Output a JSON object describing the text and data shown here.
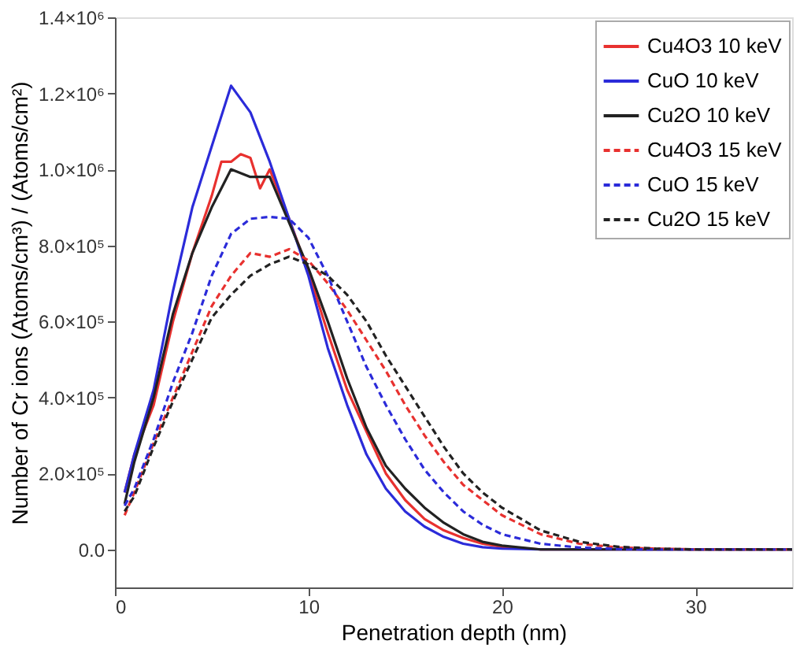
{
  "chart_data": {
    "type": "line",
    "xlabel": "Penetration depth (nm)",
    "ylabel": "Number of Cr ions (Atoms/cm³) / (Atoms/cm²)",
    "xlim": [
      0,
      35
    ],
    "xticks": [
      0,
      10,
      20,
      30
    ],
    "ylim": [
      -100000,
      1400000
    ],
    "yticks": [
      {
        "value": 0,
        "label": "0.0"
      },
      {
        "value": 200000,
        "label": "2.0×10⁵"
      },
      {
        "value": 400000,
        "label": "4.0×10⁵"
      },
      {
        "value": 600000,
        "label": "6.0×10⁵"
      },
      {
        "value": 800000,
        "label": "8.0×10⁵"
      },
      {
        "value": 1000000,
        "label": "1.0×10⁶"
      },
      {
        "value": 1200000,
        "label": "1.2×10⁶"
      },
      {
        "value": 1400000,
        "label": "1.4×10⁶"
      }
    ],
    "grid": false,
    "legend": "top right",
    "marker": "none",
    "series": [
      {
        "name": "Cu4O3 10 keV",
        "color": "#e8312f",
        "line_style": "solid",
        "x": [
          0.5,
          1,
          2,
          3,
          4,
          5,
          5.5,
          6,
          6.5,
          7,
          7.5,
          8,
          9,
          10,
          11,
          12,
          13,
          14,
          15,
          16,
          17,
          18,
          19,
          20,
          22,
          35
        ],
        "values": [
          150000,
          250000,
          380000,
          600000,
          780000,
          930000,
          1020000,
          1020000,
          1040000,
          1030000,
          950000,
          1000000,
          870000,
          730000,
          570000,
          420000,
          310000,
          200000,
          130000,
          80000,
          50000,
          30000,
          15000,
          7000,
          0,
          0
        ]
      },
      {
        "name": "CuO 10 keV",
        "color": "#2b2bd9",
        "line_style": "solid",
        "x": [
          0.5,
          1,
          2,
          3,
          4,
          5,
          6,
          7,
          8,
          9,
          10,
          11,
          12,
          13,
          14,
          15,
          16,
          17,
          18,
          19,
          20,
          22,
          35
        ],
        "values": [
          150000,
          250000,
          420000,
          680000,
          900000,
          1060000,
          1220000,
          1150000,
          1020000,
          870000,
          720000,
          530000,
          380000,
          250000,
          160000,
          100000,
          60000,
          33000,
          15000,
          6000,
          2000,
          0,
          0
        ]
      },
      {
        "name": "Cu2O 10 keV",
        "color": "#222222",
        "line_style": "solid",
        "x": [
          0.5,
          1,
          2,
          3,
          4,
          5,
          6,
          7,
          8,
          9,
          10,
          11,
          12,
          13,
          14,
          15,
          16,
          17,
          18,
          19,
          20,
          22,
          35
        ],
        "values": [
          120000,
          230000,
          400000,
          620000,
          780000,
          900000,
          1000000,
          980000,
          980000,
          860000,
          740000,
          600000,
          450000,
          320000,
          220000,
          160000,
          110000,
          70000,
          40000,
          20000,
          10000,
          0,
          0
        ]
      },
      {
        "name": "Cu4O3 15 keV",
        "color": "#e8312f",
        "line_style": "dashed",
        "x": [
          0.5,
          1,
          2,
          3,
          4,
          5,
          6,
          7,
          8,
          9,
          10,
          11,
          12,
          13,
          14,
          15,
          16,
          17,
          18,
          19,
          20,
          22,
          24,
          26,
          28,
          30,
          35
        ],
        "values": [
          90000,
          150000,
          280000,
          400000,
          520000,
          640000,
          720000,
          780000,
          770000,
          790000,
          760000,
          700000,
          630000,
          550000,
          470000,
          380000,
          300000,
          230000,
          170000,
          130000,
          90000,
          40000,
          15000,
          5000,
          2000,
          0,
          0
        ]
      },
      {
        "name": "CuO 15 keV",
        "color": "#2b2bd9",
        "line_style": "dashed",
        "x": [
          0.5,
          1,
          2,
          3,
          4,
          5,
          6,
          7,
          8,
          9,
          10,
          11,
          12,
          13,
          14,
          15,
          16,
          17,
          18,
          19,
          20,
          22,
          24,
          26,
          28,
          35
        ],
        "values": [
          115000,
          160000,
          290000,
          440000,
          570000,
          720000,
          830000,
          870000,
          875000,
          870000,
          820000,
          720000,
          600000,
          480000,
          380000,
          290000,
          210000,
          150000,
          100000,
          65000,
          40000,
          15000,
          5000,
          1000,
          0,
          0
        ]
      },
      {
        "name": "Cu2O 15 keV",
        "color": "#222222",
        "line_style": "dashed",
        "x": [
          0.5,
          1,
          2,
          3,
          4,
          5,
          6,
          7,
          8,
          9,
          10,
          11,
          12,
          13,
          14,
          15,
          16,
          17,
          18,
          19,
          20,
          22,
          24,
          26,
          28,
          30,
          35
        ],
        "values": [
          100000,
          140000,
          270000,
          390000,
          500000,
          610000,
          670000,
          720000,
          750000,
          770000,
          750000,
          720000,
          670000,
          600000,
          510000,
          430000,
          350000,
          270000,
          200000,
          150000,
          110000,
          50000,
          20000,
          7000,
          2000,
          0,
          0
        ]
      }
    ]
  }
}
